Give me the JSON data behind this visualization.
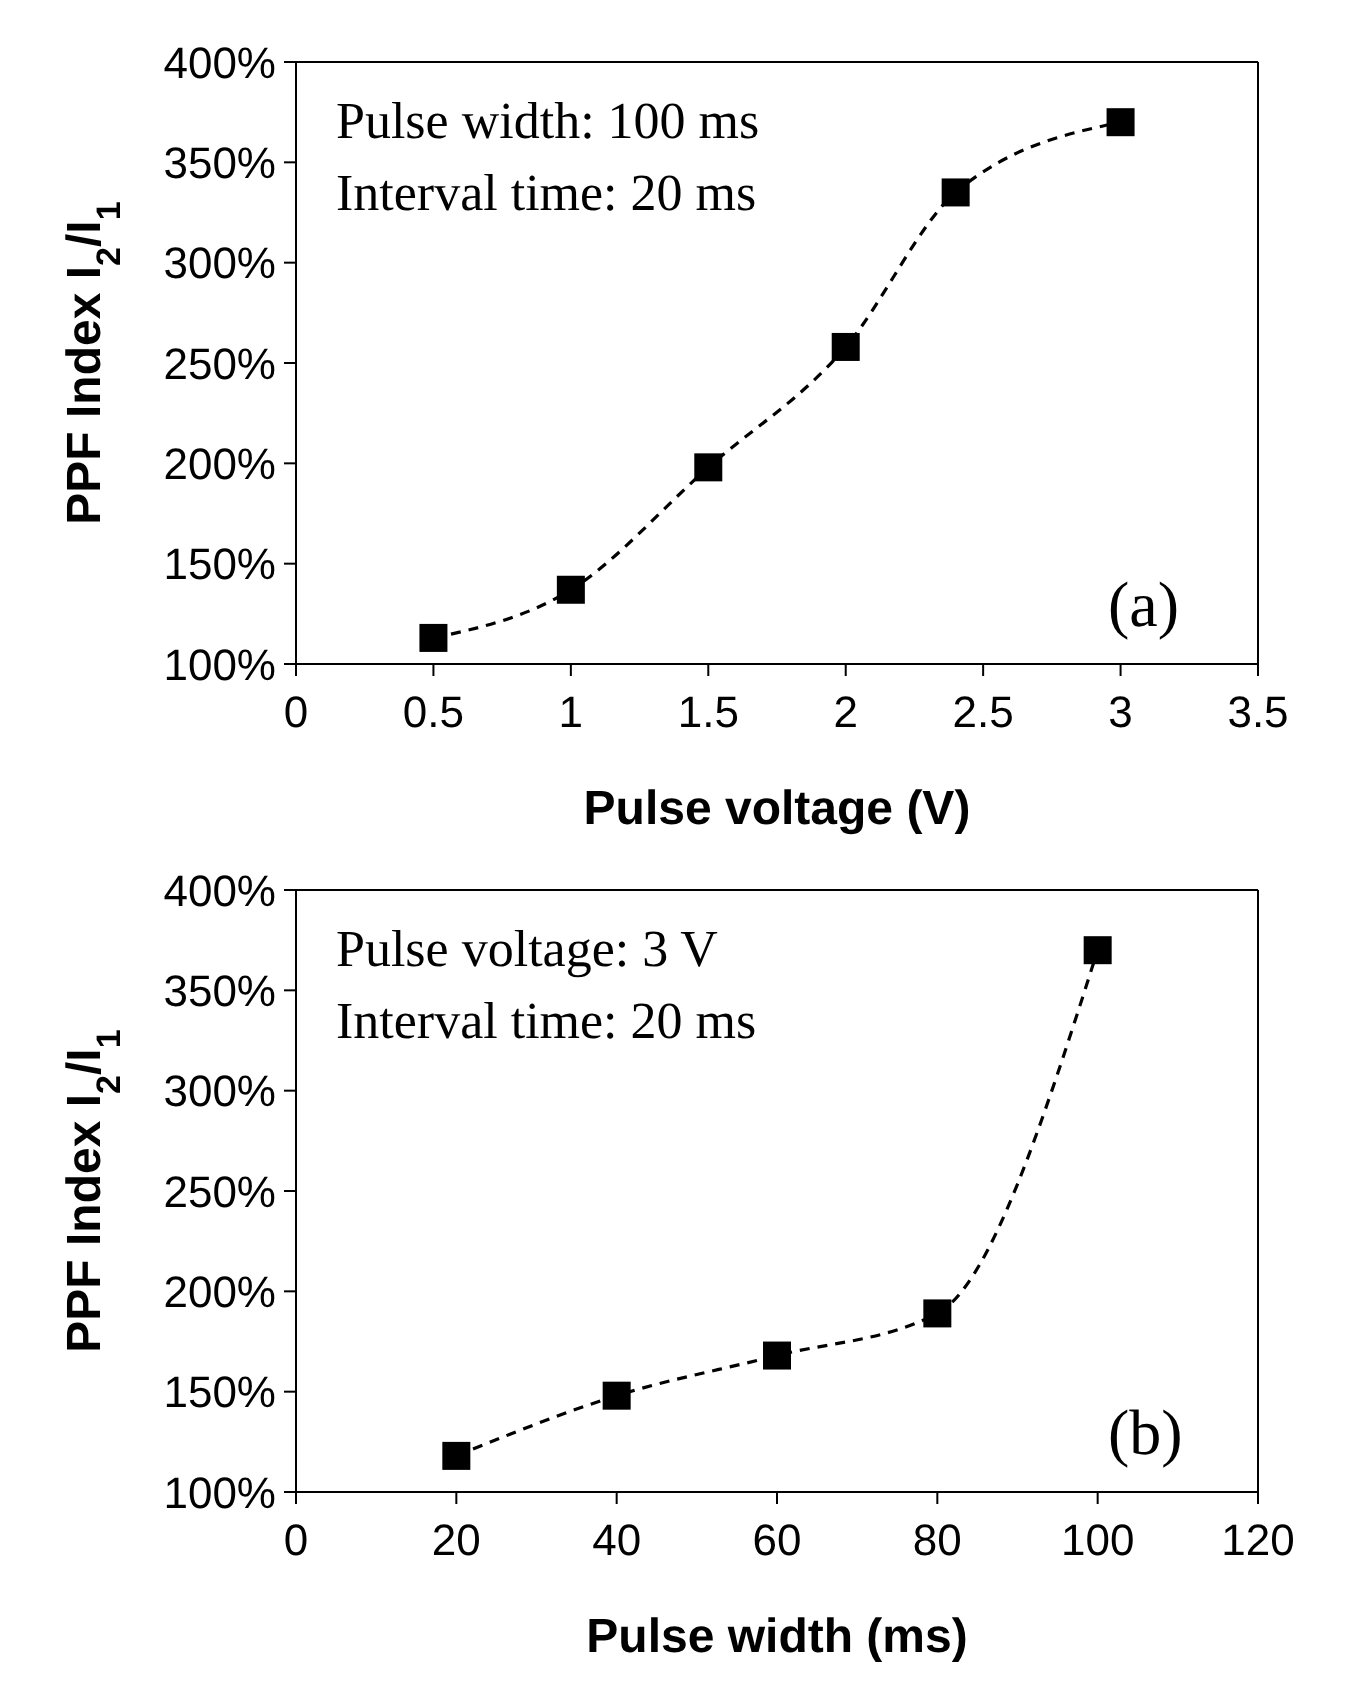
{
  "chart_data": [
    {
      "type": "line",
      "xlabel": "Pulse voltage (V)",
      "ylabel": "PPF Index I$_{2}$/I$_{1}$",
      "x": [
        0.5,
        1,
        1.5,
        2,
        2.4,
        3
      ],
      "series": [
        {
          "color": "#000000",
          "values": [
            113,
            137,
            198,
            258,
            335,
            370
          ]
        }
      ],
      "xlim": [
        0,
        3.5
      ],
      "xticks": [
        0,
        0.5,
        1,
        1.5,
        2,
        2.5,
        3,
        3.5
      ],
      "ylim": [
        100,
        400
      ],
      "yticks": [
        {
          "value": 100,
          "label": "100%"
        },
        {
          "value": 150,
          "label": "150%"
        },
        {
          "value": 200,
          "label": "200%"
        },
        {
          "value": 250,
          "label": "250%"
        },
        {
          "value": 300,
          "label": "300%"
        },
        {
          "value": 350,
          "label": "350%"
        },
        {
          "value": 400,
          "label": "400%"
        }
      ],
      "annotations": [
        "Pulse width: 100 ms",
        "Interval time: 20 ms",
        "(a)"
      ],
      "marker": "square",
      "line_style": "dashed",
      "grid": false
    },
    {
      "type": "line",
      "xlabel": "Pulse width (ms)",
      "ylabel": "PPF Index I$_{2}$/I$_{1}$",
      "x": [
        20,
        40,
        60,
        80,
        100
      ],
      "series": [
        {
          "color": "#000000",
          "values": [
            118,
            148,
            168,
            189,
            370
          ]
        }
      ],
      "xlim": [
        0,
        120
      ],
      "xticks": [
        0,
        20,
        40,
        60,
        80,
        100,
        120
      ],
      "ylim": [
        100,
        400
      ],
      "yticks": [
        {
          "value": 100,
          "label": "100%"
        },
        {
          "value": 150,
          "label": "150%"
        },
        {
          "value": 200,
          "label": "200%"
        },
        {
          "value": 250,
          "label": "250%"
        },
        {
          "value": 300,
          "label": "300%"
        },
        {
          "value": 350,
          "label": "350%"
        },
        {
          "value": 400,
          "label": "400%"
        }
      ],
      "annotations": [
        "Pulse voltage: 3 V",
        "Interval time: 20 ms",
        "(b)"
      ],
      "marker": "square",
      "line_style": "dashed",
      "grid": false
    }
  ]
}
